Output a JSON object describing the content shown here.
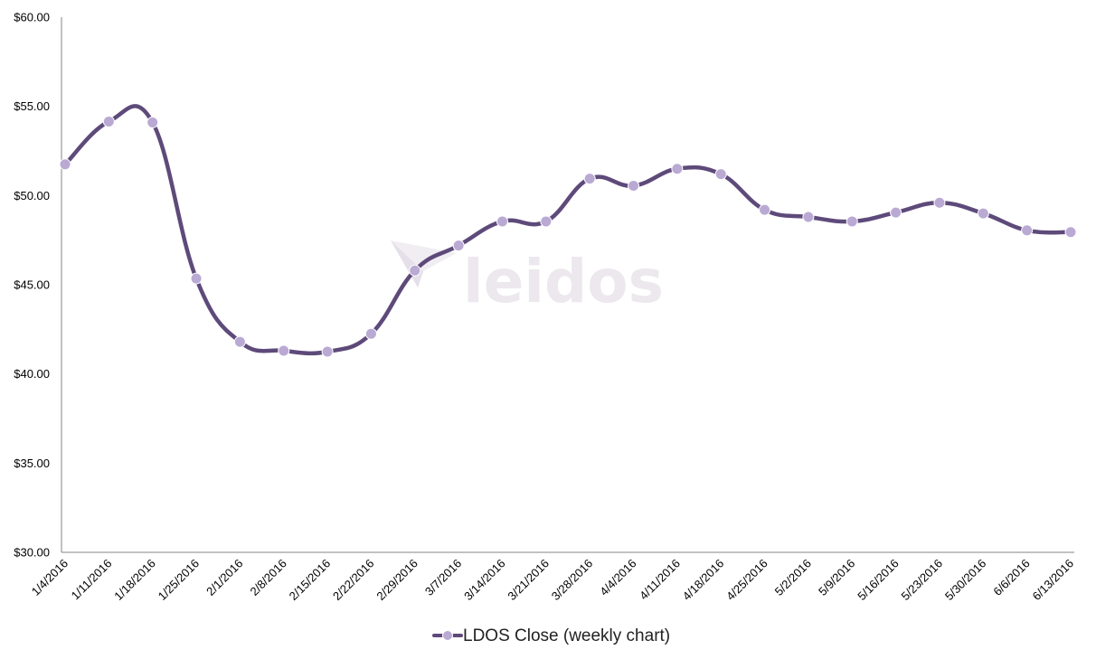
{
  "chart_data": {
    "type": "line",
    "title": "",
    "xlabel": "",
    "ylabel": "",
    "ylim": [
      30,
      60
    ],
    "yticks": [
      "$30.00",
      "$35.00",
      "$40.00",
      "$45.00",
      "$50.00",
      "$55.00",
      "$60.00"
    ],
    "ytick_values": [
      30,
      35,
      40,
      45,
      50,
      55,
      60
    ],
    "categories": [
      "1/4/2016",
      "1/11/2016",
      "1/18/2016",
      "1/25/2016",
      "2/1/2016",
      "2/8/2016",
      "2/15/2016",
      "2/22/2016",
      "2/29/2016",
      "3/7/2016",
      "3/14/2016",
      "3/21/2016",
      "3/28/2016",
      "4/4/2016",
      "4/11/2016",
      "4/18/2016",
      "4/25/2016",
      "5/2/2016",
      "5/9/2016",
      "5/16/2016",
      "5/23/2016",
      "5/30/2016",
      "6/6/2016",
      "6/13/2016"
    ],
    "series": [
      {
        "name": "LDOS Close (weekly chart)",
        "color": "#5e4a7a",
        "marker_color": "#b9a9d3",
        "values": [
          51.75,
          54.15,
          54.1,
          45.35,
          41.8,
          41.3,
          41.25,
          42.25,
          45.8,
          47.2,
          48.55,
          48.55,
          50.95,
          50.55,
          51.5,
          51.2,
          49.2,
          48.8,
          48.55,
          49.05,
          49.6,
          49.0,
          48.05,
          47.95
        ]
      }
    ],
    "grid": false,
    "legend_position": "bottom"
  },
  "watermark": {
    "text": "leidos",
    "color": "#ece8ee"
  }
}
